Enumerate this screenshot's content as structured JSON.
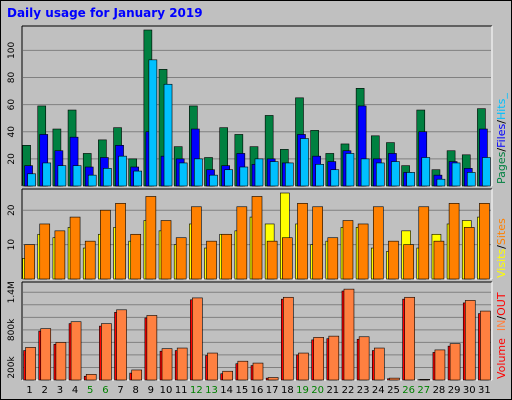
{
  "title": "Daily usage for January 2019",
  "colors": {
    "background": "#c0c0c0",
    "title": "#0000ff",
    "pages": "#008040",
    "files": "#0000ff",
    "hits": "#00c0ff",
    "visits": "#ffff00",
    "sites": "#ff8000",
    "kbytes_out": "#ff0000",
    "kbytes_in": "#ff8040",
    "weekend_label": "#008000"
  },
  "side_labels": {
    "top": [
      {
        "text": "Pages",
        "color": "#008040"
      },
      {
        "text": "/",
        "color": "#000000"
      },
      {
        "text": "Files",
        "color": "#0000ff"
      },
      {
        "text": "/",
        "color": "#000000"
      },
      {
        "text": "Hits_",
        "color": "#00c0ff"
      }
    ],
    "middle": [
      {
        "text": "Visits",
        "color": "#ffff00"
      },
      {
        "text": "/",
        "color": "#000000"
      },
      {
        "text": "Sites",
        "color": "#ff8000"
      }
    ],
    "bottom": [
      {
        "text": "Volume",
        "color": "#ff0000"
      },
      {
        "text": "  ",
        "color": "#000000"
      },
      {
        "text": "IN",
        "color": "#ff8040"
      },
      {
        "text": "/",
        "color": "#000000"
      },
      {
        "text": "OUT",
        "color": "#ff0000"
      }
    ]
  },
  "chart_data": [
    {
      "type": "bar",
      "name": "hits-panel",
      "x": [
        "1",
        "2",
        "3",
        "4",
        "5",
        "6",
        "7",
        "8",
        "9",
        "10",
        "11",
        "12",
        "13",
        "14",
        "15",
        "16",
        "17",
        "18",
        "19",
        "20",
        "21",
        "22",
        "23",
        "24",
        "25",
        "26",
        "27",
        "28",
        "29",
        "30",
        "31"
      ],
      "weekend_days": [
        "5",
        "6",
        "12",
        "13",
        "19",
        "20",
        "26",
        "27"
      ],
      "yticks": [
        20,
        40,
        60,
        80,
        100
      ],
      "ylim": [
        0,
        115
      ],
      "series": [
        {
          "name": "Pages",
          "values": [
            30,
            59,
            42,
            56,
            24,
            34,
            43,
            20,
            115,
            86,
            29,
            59,
            21,
            43,
            38,
            29,
            52,
            27,
            65,
            41,
            24,
            31,
            72,
            37,
            32,
            15,
            56,
            12,
            26,
            23,
            57
          ]
        },
        {
          "name": "Files",
          "values": [
            15,
            38,
            26,
            36,
            14,
            21,
            30,
            14,
            40,
            22,
            20,
            42,
            12,
            15,
            24,
            16,
            20,
            17,
            38,
            22,
            18,
            26,
            59,
            20,
            24,
            10,
            40,
            8,
            18,
            13,
            42
          ]
        },
        {
          "name": "Hits",
          "values": [
            9,
            17,
            15,
            15,
            8,
            13,
            22,
            11,
            93,
            75,
            17,
            20,
            8,
            12,
            14,
            20,
            18,
            17,
            35,
            16,
            12,
            24,
            20,
            17,
            18,
            10,
            21,
            5,
            17,
            10,
            21
          ]
        }
      ]
    },
    {
      "type": "bar",
      "name": "visits-panel",
      "x": [
        "1",
        "2",
        "3",
        "4",
        "5",
        "6",
        "7",
        "8",
        "9",
        "10",
        "11",
        "12",
        "13",
        "14",
        "15",
        "16",
        "17",
        "18",
        "19",
        "20",
        "21",
        "22",
        "23",
        "24",
        "25",
        "26",
        "27",
        "28",
        "29",
        "30",
        "31"
      ],
      "yticks": [
        10,
        20
      ],
      "ylim": [
        0,
        25
      ],
      "series": [
        {
          "name": "Visits",
          "values": [
            6,
            13,
            12,
            15,
            9,
            13,
            15,
            11,
            17,
            14,
            10,
            16,
            9,
            13,
            14,
            18,
            16,
            25,
            16,
            10,
            11,
            15,
            15,
            9,
            8,
            14,
            9,
            13,
            16,
            17,
            18
          ]
        },
        {
          "name": "Sites",
          "values": [
            10,
            16,
            14,
            18,
            11,
            20,
            22,
            13,
            24,
            17,
            12,
            21,
            11,
            13,
            21,
            24,
            11,
            12,
            22,
            21,
            12,
            17,
            16,
            21,
            11,
            10,
            21,
            11,
            22,
            15,
            22
          ]
        }
      ]
    },
    {
      "type": "bar",
      "name": "volume-panel",
      "x": [
        "1",
        "2",
        "3",
        "4",
        "5",
        "6",
        "7",
        "8",
        "9",
        "10",
        "11",
        "12",
        "13",
        "14",
        "15",
        "16",
        "17",
        "18",
        "19",
        "20",
        "21",
        "22",
        "23",
        "24",
        "25",
        "26",
        "27",
        "28",
        "29",
        "30",
        "31"
      ],
      "yticks": [
        200,
        400,
        600,
        800,
        1000,
        1200,
        1400
      ],
      "ytick_labels": [
        "200k",
        "",
        "",
        "800k",
        "",
        "",
        "1.4M"
      ],
      "ylim": [
        0,
        1500
      ],
      "series": [
        {
          "name": "IN",
          "values": [
            520,
            820,
            600,
            930,
            90,
            900,
            1120,
            160,
            1030,
            500,
            510,
            1310,
            430,
            140,
            300,
            270,
            40,
            1320,
            430,
            680,
            700,
            1450,
            690,
            510,
            30,
            1320,
            10,
            480,
            580,
            1270,
            1100
          ]
        },
        {
          "name": "OUT",
          "values": [
            470,
            780,
            570,
            900,
            60,
            860,
            1080,
            110,
            990,
            460,
            470,
            1280,
            390,
            100,
            260,
            230,
            30,
            1290,
            400,
            640,
            660,
            1420,
            650,
            470,
            20,
            1290,
            5,
            440,
            540,
            1230,
            1060
          ]
        }
      ]
    }
  ]
}
